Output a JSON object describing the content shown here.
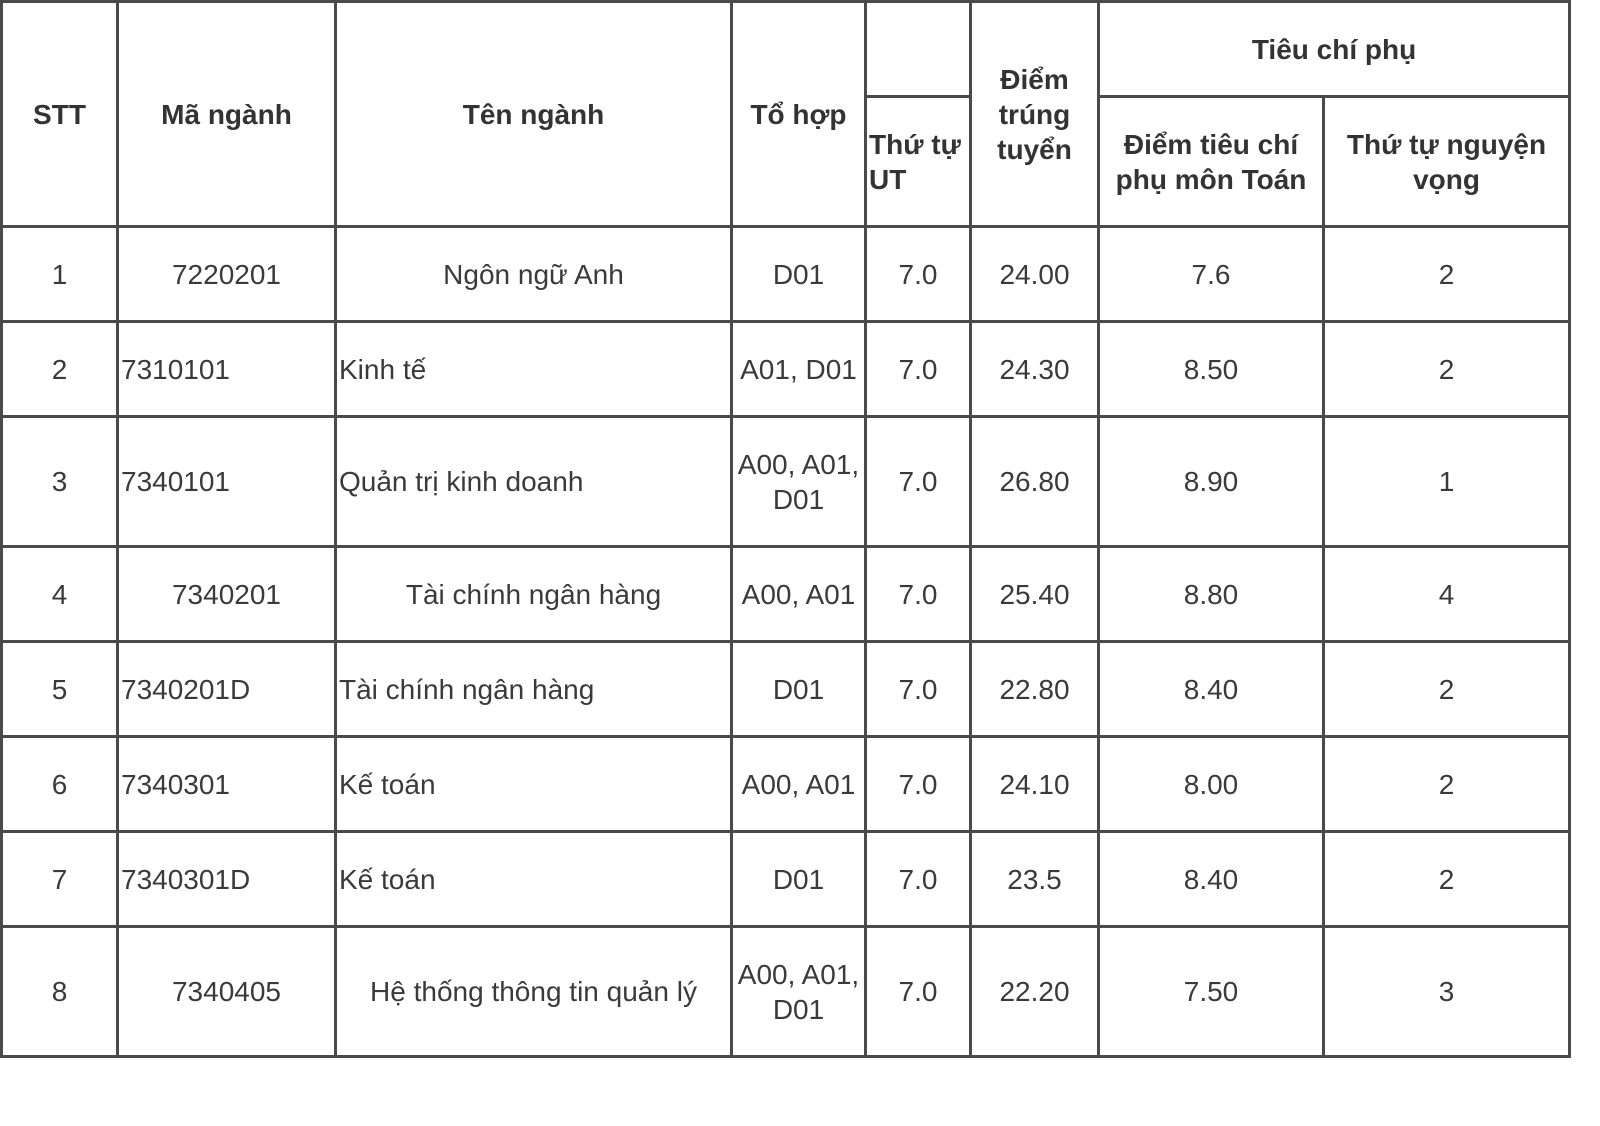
{
  "header": {
    "stt": "STT",
    "ma_nganh": "Mã ngành",
    "ten_nganh": "Tên ngành",
    "to_hop": "Tổ hợp",
    "thu_tu_ut": "Thứ tự UT",
    "diem_trung_tuyen": "Điểm trúng tuyển",
    "tieu_chi_phu": "Tiêu chí phụ",
    "diem_tieu_chi_phu_toan": "Điểm tiêu chí phụ môn Toán",
    "thu_tu_nguyen_vong": "Thứ tự nguyện vọng"
  },
  "rows": [
    {
      "stt": "1",
      "ma": "7220201",
      "ten": "Ngôn ngữ Anh",
      "to_hop": "D01",
      "ut": "7.0",
      "diem": "24.00",
      "toan": "7.6",
      "nv": "2"
    },
    {
      "stt": "2",
      "ma": "7310101",
      "ten": "Kinh tế",
      "to_hop": "A01, D01",
      "ut": "7.0",
      "diem": "24.30",
      "toan": "8.50",
      "nv": "2"
    },
    {
      "stt": "3",
      "ma": "7340101",
      "ten": "Quản trị kinh doanh",
      "to_hop": "A00, A01, D01",
      "ut": "7.0",
      "diem": "26.80",
      "toan": "8.90",
      "nv": "1"
    },
    {
      "stt": "4",
      "ma": "7340201",
      "ten": "Tài chính ngân hàng",
      "to_hop": "A00, A01",
      "ut": "7.0",
      "diem": "25.40",
      "toan": "8.80",
      "nv": "4"
    },
    {
      "stt": "5",
      "ma": "7340201D",
      "ten": "Tài chính ngân hàng",
      "to_hop": "D01",
      "ut": "7.0",
      "diem": "22.80",
      "toan": "8.40",
      "nv": "2"
    },
    {
      "stt": "6",
      "ma": "7340301",
      "ten": "Kế toán",
      "to_hop": "A00, A01",
      "ut": "7.0",
      "diem": "24.10",
      "toan": "8.00",
      "nv": "2"
    },
    {
      "stt": "7",
      "ma": "7340301D",
      "ten": "Kế toán",
      "to_hop": "D01",
      "ut": "7.0",
      "diem": "23.5",
      "toan": "8.40",
      "nv": "2"
    },
    {
      "stt": "8",
      "ma": "7340405",
      "ten": "Hệ thống thông tin quản lý",
      "to_hop": "A00, A01, D01",
      "ut": "7.0",
      "diem": "22.20",
      "toan": "7.50",
      "nv": "3"
    }
  ]
}
